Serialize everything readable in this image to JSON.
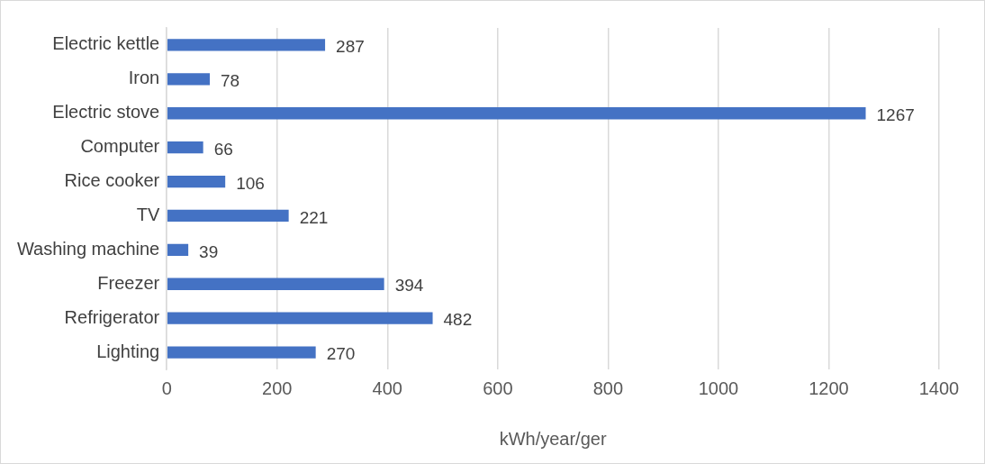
{
  "chart_data": {
    "type": "bar",
    "orientation": "horizontal",
    "xlabel": "kWh/year/ger",
    "categories": [
      "Electric kettle",
      "Iron",
      "Electric stove",
      "Computer",
      "Rice cooker",
      "TV",
      "Washing machine",
      "Freezer",
      "Refrigerator",
      "Lighting"
    ],
    "values": [
      287,
      78,
      1267,
      66,
      106,
      221,
      39,
      394,
      482,
      270
    ],
    "color": "#4472c4",
    "xlim": [
      0,
      1400
    ],
    "xticks": [
      0,
      200,
      400,
      600,
      800,
      1000,
      1200,
      1400
    ],
    "grid": "x",
    "data_labels": true
  }
}
